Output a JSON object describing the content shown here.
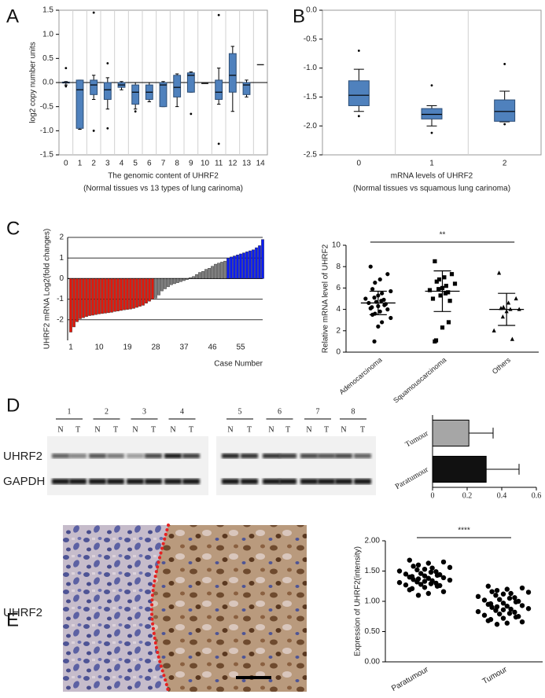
{
  "panels": [
    "A",
    "B",
    "C",
    "D",
    "E"
  ],
  "chart_data": [
    {
      "type": "box",
      "categories": [
        "0",
        "1",
        "2",
        "3",
        "4",
        "5",
        "6",
        "7",
        "8",
        "9",
        "10",
        "11",
        "12",
        "13",
        "14"
      ],
      "whisker_low": [
        -0.05,
        -0.97,
        -0.35,
        -0.55,
        -0.15,
        -0.55,
        -0.4,
        -0.5,
        -0.5,
        -0.2,
        null,
        -0.45,
        -0.6,
        -0.3,
        null
      ],
      "q1": [
        -0.01,
        -0.95,
        -0.25,
        -0.35,
        -0.1,
        -0.45,
        -0.35,
        -0.5,
        -0.3,
        -0.2,
        null,
        -0.35,
        -0.2,
        -0.25,
        null
      ],
      "median": [
        0,
        -0.15,
        -0.05,
        -0.15,
        -0.05,
        -0.2,
        -0.2,
        -0.05,
        -0.1,
        0.15,
        -0.02,
        -0.2,
        0.15,
        -0.05,
        0.37
      ],
      "q3": [
        0.01,
        0.05,
        0.05,
        0,
        0,
        -0.05,
        -0.05,
        0,
        0.15,
        0.2,
        null,
        0.05,
        0.6,
        0,
        null
      ],
      "whisker_high": [
        0.02,
        0.05,
        0.15,
        0.1,
        0.02,
        0,
        0,
        0.02,
        0.18,
        0.22,
        null,
        0.3,
        0.75,
        0.05,
        null
      ],
      "outliers": [
        [
          0.3,
          -0.08
        ],
        [],
        [
          1.45,
          -1.0
        ],
        [
          0.4,
          -0.95
        ],
        [],
        [
          -0.6
        ],
        [],
        [],
        [],
        [
          -0.65
        ],
        [],
        [
          1.4,
          -1.27
        ],
        [],
        [],
        []
      ],
      "color": "#4f81bd",
      "ylim": [
        -1.5,
        1.5
      ],
      "yticks": [
        -1.5,
        {
          "value": -1,
          "label": "-1.0"
        },
        -0.5,
        {
          "value": 0,
          "label": "0.0"
        },
        0.5,
        {
          "value": 1,
          "label": "1.0"
        },
        1.5
      ],
      "ylabel": "log2 copy number units",
      "xlabel": [
        "The  genomic content of UHRF2",
        "(Normal tissues vs 13 types of lung carinoma)"
      ]
    },
    {
      "type": "box",
      "categories": [
        "0",
        "1",
        "2"
      ],
      "whisker_low": [
        -1.75,
        -2.0,
        -1.93
      ],
      "q1": [
        -1.65,
        -1.88,
        -1.92
      ],
      "median": [
        -1.47,
        -1.8,
        -1.75
      ],
      "q3": [
        -1.22,
        -1.7,
        -1.55
      ],
      "whisker_high": [
        -1.02,
        -1.65,
        -1.4
      ],
      "outliers": [
        [
          -0.7,
          -1.83
        ],
        [
          -1.3,
          -2.12
        ],
        [
          -0.93,
          -1.97
        ]
      ],
      "color": "#4f81bd",
      "ylim": [
        -2.5,
        0
      ],
      "yticks": [
        -2.5,
        {
          "value": -2,
          "label": "-2.0"
        },
        -1.5,
        {
          "value": -1,
          "label": "-1.0"
        },
        -0.5,
        {
          "value": 0,
          "label": "0.0"
        }
      ],
      "xlabel": [
        "mRNA levels of UHRF2",
        "(Normal tissues vs squamous  lung carinoma)"
      ]
    },
    {
      "type": "bar",
      "xlim": [
        0,
        62
      ],
      "xticks": [
        1,
        10,
        19,
        28,
        37,
        46,
        55
      ],
      "ylim": [
        -3,
        2
      ],
      "yticks": [
        2,
        1,
        0,
        -1,
        -2
      ],
      "grid": true,
      "ylabel": "UHRF2 mRNA Log2(fold changes)",
      "xlabel": "Case Number",
      "series": [
        {
          "color": "#e3170a",
          "x": [
            1,
            2,
            3,
            4,
            5,
            6,
            7,
            8,
            9,
            10,
            11,
            12,
            13,
            14,
            15,
            16,
            17,
            18,
            19,
            20,
            21,
            22,
            23,
            24,
            25,
            26,
            27
          ],
          "values": [
            -2.6,
            -2.35,
            -2.1,
            -1.95,
            -1.9,
            -1.85,
            -1.8,
            -1.78,
            -1.75,
            -1.72,
            -1.7,
            -1.68,
            -1.66,
            -1.64,
            -1.6,
            -1.58,
            -1.55,
            -1.52,
            -1.5,
            -1.48,
            -1.45,
            -1.4,
            -1.35,
            -1.3,
            -1.2,
            -1.1,
            -1.0
          ]
        },
        {
          "color": "#7f7f7f",
          "x": [
            28,
            29,
            30,
            31,
            32,
            33,
            34,
            35,
            36,
            37,
            38,
            39,
            40,
            41,
            42,
            43,
            44,
            45,
            46,
            47,
            48,
            49,
            50
          ],
          "values": [
            -0.95,
            -0.8,
            -0.6,
            -0.5,
            -0.4,
            -0.3,
            -0.25,
            -0.2,
            -0.15,
            -0.1,
            -0.05,
            0.05,
            0.1,
            0.2,
            0.3,
            0.35,
            0.45,
            0.5,
            0.6,
            0.7,
            0.75,
            0.8,
            0.85
          ]
        },
        {
          "color": "#0a1bf5",
          "x": [
            51,
            52,
            53,
            54,
            55,
            56,
            57,
            58,
            59,
            60,
            61,
            62
          ],
          "values": [
            1.0,
            1.05,
            1.1,
            1.15,
            1.2,
            1.25,
            1.3,
            1.35,
            1.4,
            1.5,
            1.6,
            1.9
          ]
        }
      ]
    },
    {
      "type": "dot",
      "categories": [
        "Adenocarcinoma",
        "Squamouscarcinoma",
        "Others"
      ],
      "points": [
        [
          8.0,
          7.3,
          6.8,
          6.5,
          5.9,
          5.7,
          5.5,
          5.3,
          5.1,
          5.0,
          4.9,
          4.8,
          4.7,
          4.6,
          4.5,
          4.4,
          4.3,
          4.2,
          4.1,
          4.0,
          3.8,
          3.6,
          3.5,
          3.2,
          2.8,
          2.4,
          1.0
        ],
        [
          8.5,
          7.3,
          7.0,
          6.8,
          6.6,
          6.4,
          6.2,
          6.0,
          5.9,
          5.8,
          5.6,
          5.5,
          5.3,
          5.0,
          4.8,
          2.8,
          2.3,
          1.1,
          1.0
        ],
        [
          7.4,
          5.0,
          4.6,
          4.2,
          4.1,
          4.0,
          4.0,
          3.8,
          3.3,
          2.0,
          1.2
        ]
      ],
      "markers": [
        "circle",
        "square",
        "triangle"
      ],
      "mean": [
        4.6,
        5.7,
        4.0
      ],
      "sd": [
        1.1,
        1.9,
        1.5
      ],
      "ylim": [
        0,
        10
      ],
      "yticks": [
        0,
        2,
        4,
        6,
        8,
        10
      ],
      "ylabel": "Relative mRNA level of UHRF2",
      "annotation": "**"
    },
    {
      "type": "barh",
      "categories": [
        "Tumour",
        "Paratumour"
      ],
      "values": [
        0.21,
        0.31
      ],
      "errors": [
        0.14,
        0.19
      ],
      "colors": [
        "#a6a6a6",
        "#111111"
      ],
      "xlim": [
        0,
        0.6
      ],
      "xticks": [
        0,
        0.2,
        0.4,
        0.6
      ]
    },
    {
      "type": "dot",
      "categories": [
        "Paratumour",
        "Tumour"
      ],
      "points": [
        [
          1.68,
          1.65,
          1.63,
          1.6,
          1.58,
          1.56,
          1.55,
          1.53,
          1.52,
          1.5,
          1.49,
          1.48,
          1.46,
          1.45,
          1.44,
          1.43,
          1.42,
          1.41,
          1.4,
          1.39,
          1.38,
          1.37,
          1.36,
          1.35,
          1.34,
          1.33,
          1.32,
          1.31,
          1.3,
          1.29,
          1.28,
          1.27,
          1.26,
          1.25,
          1.23,
          1.21,
          1.19,
          1.16,
          1.13,
          1.1
        ],
        [
          1.25,
          1.22,
          1.2,
          1.18,
          1.16,
          1.15,
          1.13,
          1.12,
          1.1,
          1.08,
          1.06,
          1.05,
          1.03,
          1.02,
          1.0,
          0.99,
          0.97,
          0.96,
          0.95,
          0.93,
          0.92,
          0.91,
          0.9,
          0.88,
          0.87,
          0.86,
          0.85,
          0.83,
          0.82,
          0.8,
          0.79,
          0.77,
          0.75,
          0.74,
          0.72,
          0.7,
          0.68,
          0.66,
          0.64,
          0.62
        ]
      ],
      "markers": [
        "circle",
        "circle"
      ],
      "ylim": [
        0,
        2
      ],
      "yticks": [
        {
          "value": 0,
          "label": "0.00"
        },
        {
          "value": 0.5,
          "label": "0.50"
        },
        {
          "value": 1,
          "label": "1.00"
        },
        {
          "value": 1.5,
          "label": "1.50"
        },
        {
          "value": 2,
          "label": "2.00"
        }
      ],
      "ylabel": "Expression of UHRF2(intensity)",
      "annotation": "****"
    }
  ],
  "blot": {
    "lanes": [
      "1",
      "2",
      "3",
      "4",
      "5",
      "6",
      "7",
      "8"
    ],
    "lane_labels": [
      "N",
      "T"
    ],
    "rows": [
      "UHRF2",
      "GAPDH"
    ]
  },
  "histology": {
    "label": "UHRF2"
  }
}
